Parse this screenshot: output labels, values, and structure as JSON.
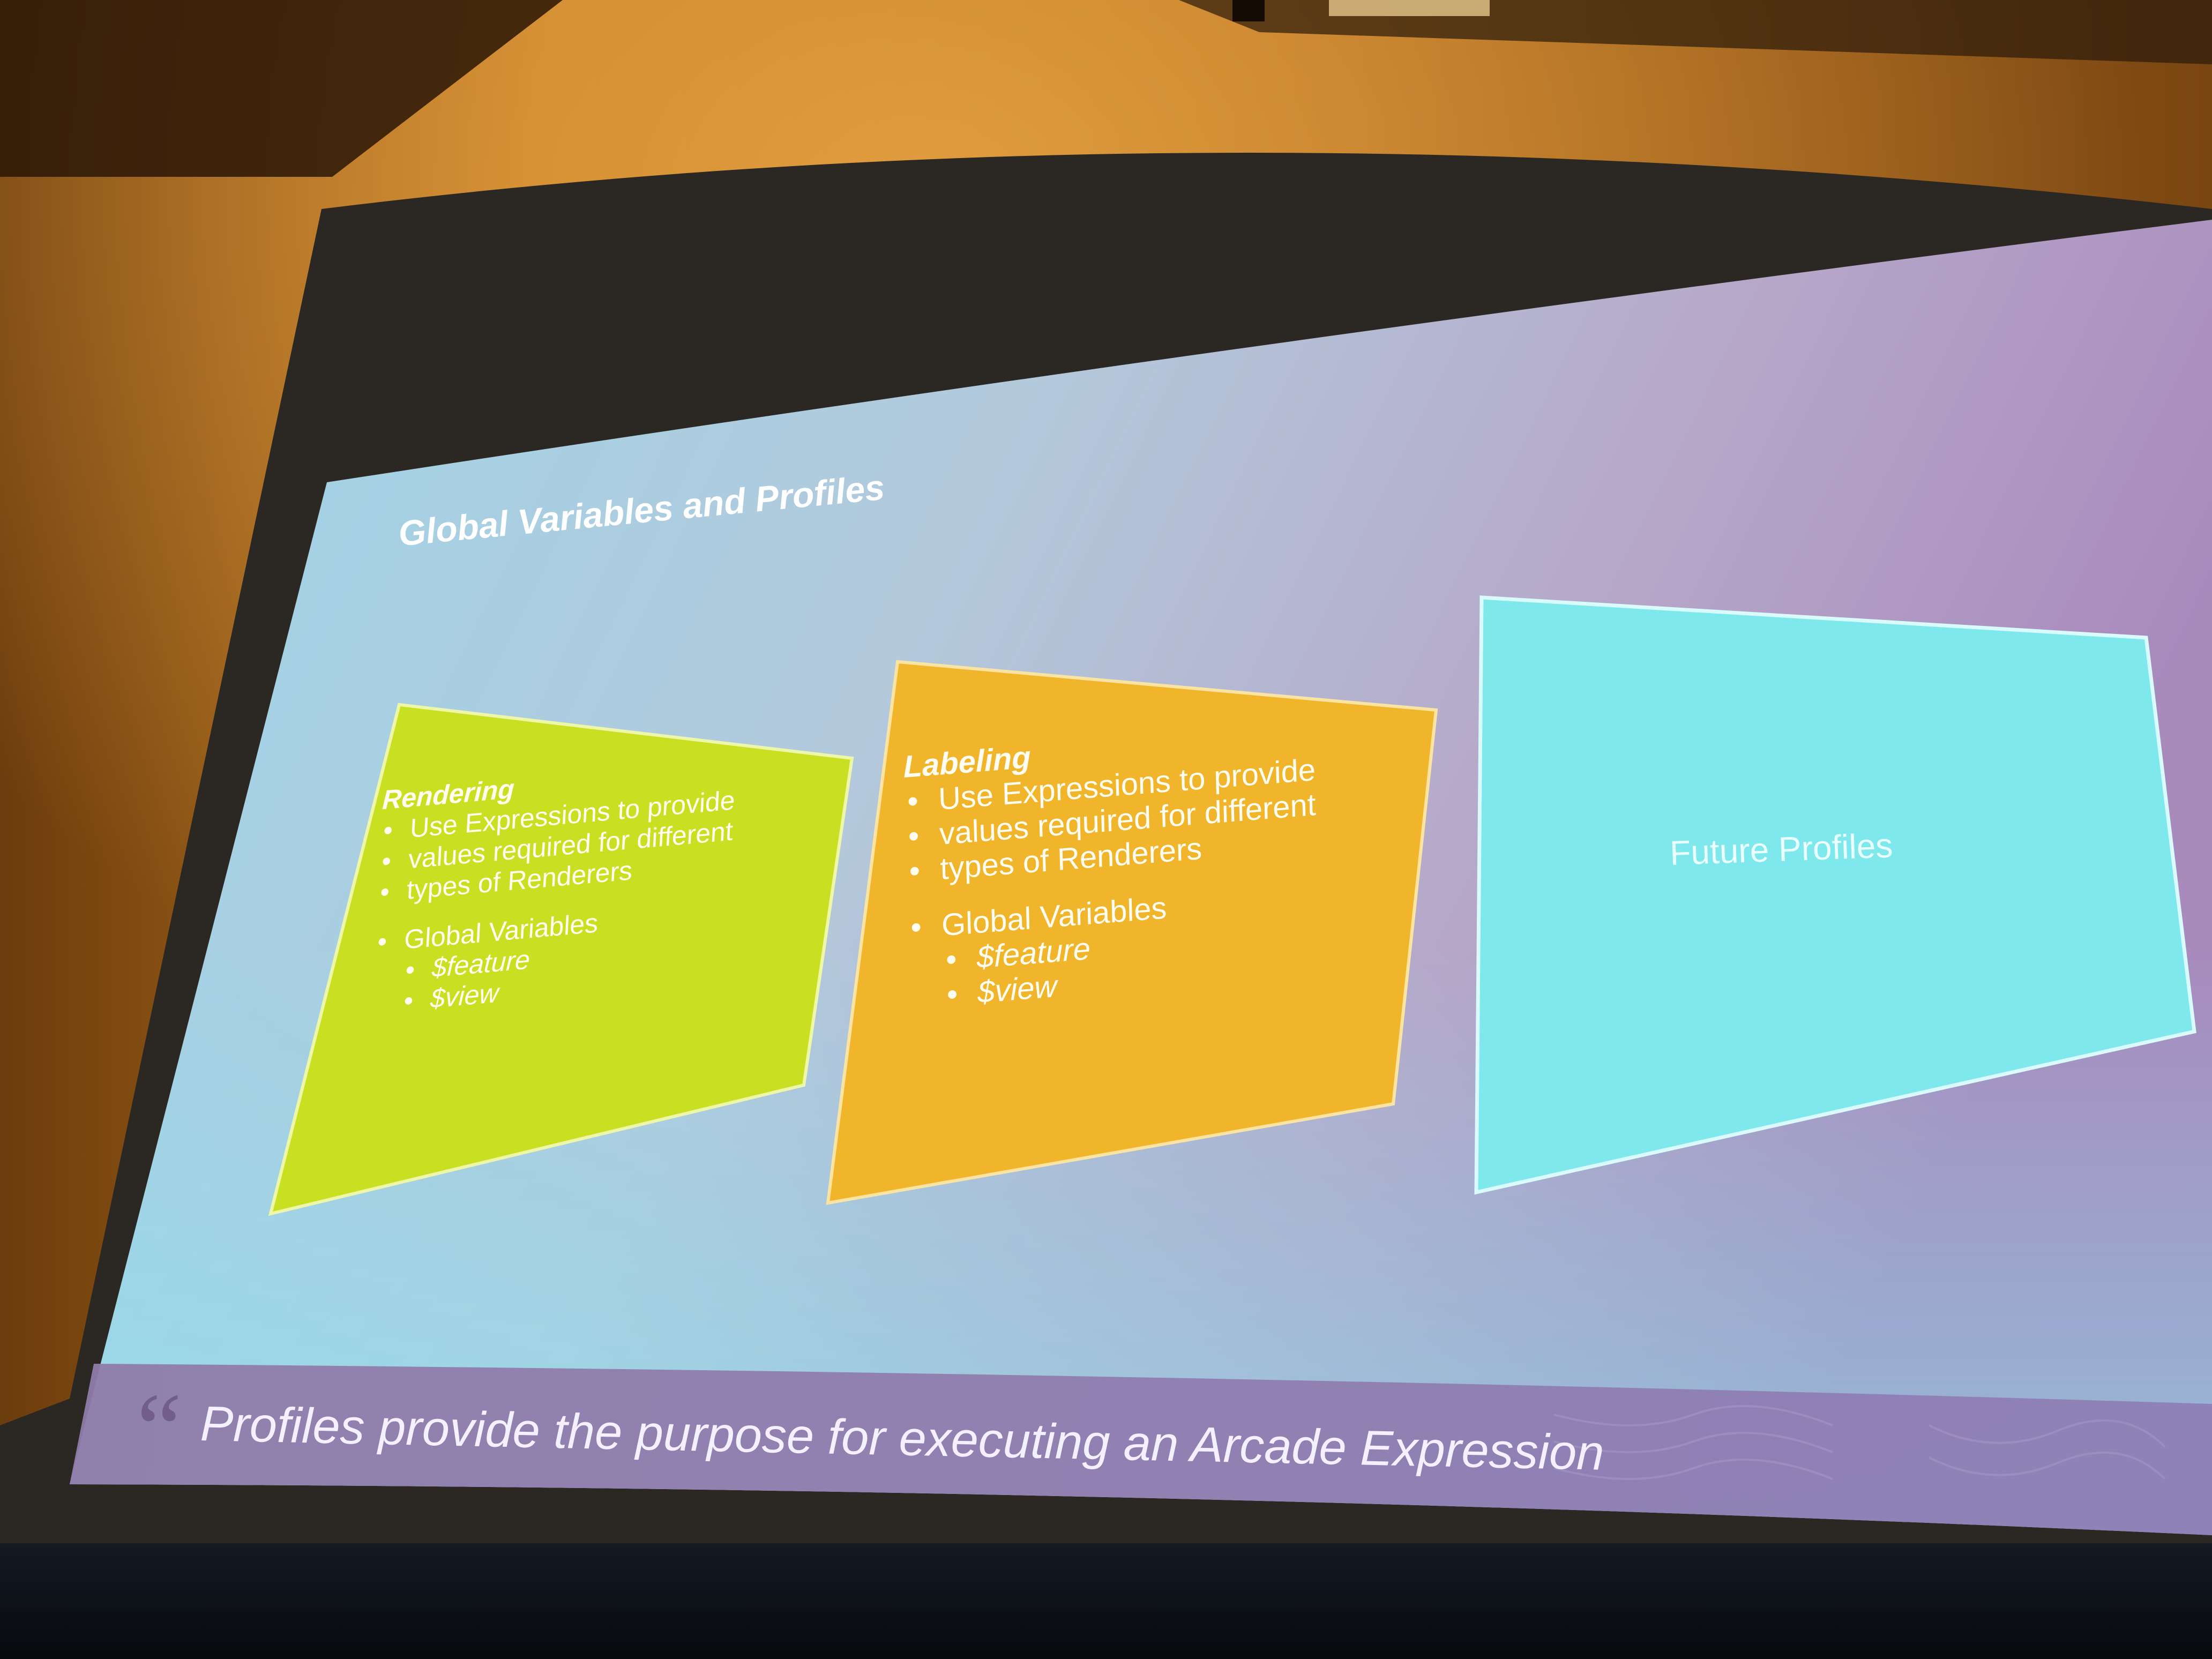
{
  "slide": {
    "title": "Global Variables and Profiles",
    "rendering": {
      "heading": "Rendering",
      "bullet": "Use Expressions to provide values required for different types of Renderers",
      "bullet_lines": [
        "Use Expressions to provide",
        "values required for different",
        "types of Renderers"
      ],
      "globals_heading": "Global Variables",
      "globals": [
        "$feature",
        "$view"
      ]
    },
    "labeling": {
      "heading": "Labeling",
      "bullet": "Use Expressions to provide values required for different types of Renderers",
      "bullet_lines": [
        "Use Expressions to provide",
        "values required for different",
        "types of Renderers"
      ],
      "globals_heading": "Global Variables",
      "globals": [
        "$feature",
        "$view"
      ]
    },
    "future": {
      "label": "Future Profiles"
    },
    "quote_mark": "“",
    "footer_quote": "Profiles provide the purpose for executing an Arcade Expression"
  },
  "colors": {
    "rendering_box": "#c9df2a",
    "labeling_box": "#f0b72c",
    "future_box": "#7fe7ea",
    "slide_gradient_left": "#9fd7e6",
    "slide_gradient_right": "#b79ac4",
    "footer_band": "#8d7db0",
    "room_wall": "#b06a18"
  },
  "icons": [
    "quote-icon"
  ]
}
